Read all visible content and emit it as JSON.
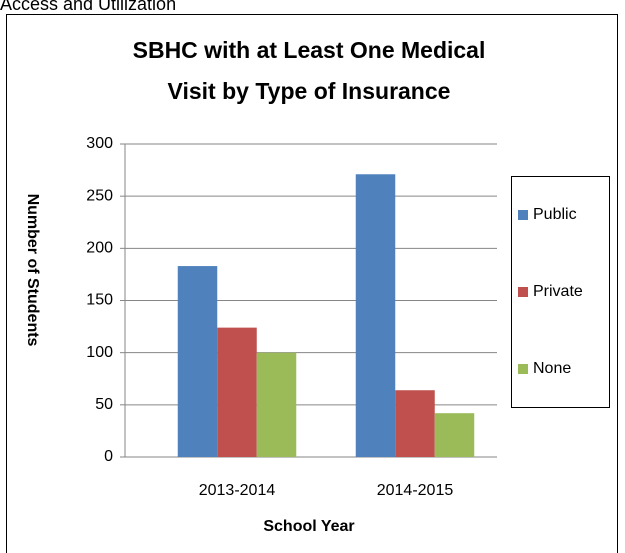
{
  "header": "Access and Utilization",
  "chart_data": {
    "type": "bar",
    "title": [
      "SBHC with at Least One Medical",
      "Visit by Type of Insurance"
    ],
    "x_label": "School Year",
    "y_label": "Number of Students",
    "categories": [
      "2013-2014",
      "2014-2015"
    ],
    "series": [
      {
        "name": "Public",
        "color": "#4f81bd",
        "values": [
          183,
          271
        ]
      },
      {
        "name": "Private",
        "color": "#c0504d",
        "values": [
          124,
          64
        ]
      },
      {
        "name": "None",
        "color": "#9bbb59",
        "values": [
          100,
          42
        ]
      }
    ],
    "ylim": [
      0,
      300
    ],
    "yticks": [
      0,
      50,
      100,
      150,
      200,
      250,
      300
    ],
    "grid": true,
    "legend": "right"
  }
}
